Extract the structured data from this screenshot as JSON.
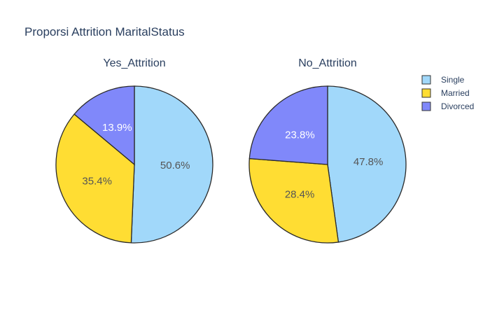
{
  "chart_data": {
    "type": "pie",
    "title": "Proporsi Attrition MaritalStatus",
    "categories": [
      "Single",
      "Married",
      "Divorced"
    ],
    "colors": {
      "Single": "#a1d8fa",
      "Married": "#ffdd33",
      "Divorced": "#8088fa"
    },
    "pies": [
      {
        "name": "Yes_Attrition",
        "values": [
          50.6,
          35.4,
          13.9
        ],
        "labels": [
          "50.6%",
          "35.4%",
          "13.9%"
        ]
      },
      {
        "name": "No_Attrition",
        "values": [
          47.8,
          28.4,
          23.8
        ],
        "labels": [
          "47.8%",
          "28.4%",
          "23.8%"
        ]
      }
    ],
    "legend": {
      "position": "top-right",
      "entries": [
        "Single",
        "Married",
        "Divorced"
      ]
    }
  }
}
